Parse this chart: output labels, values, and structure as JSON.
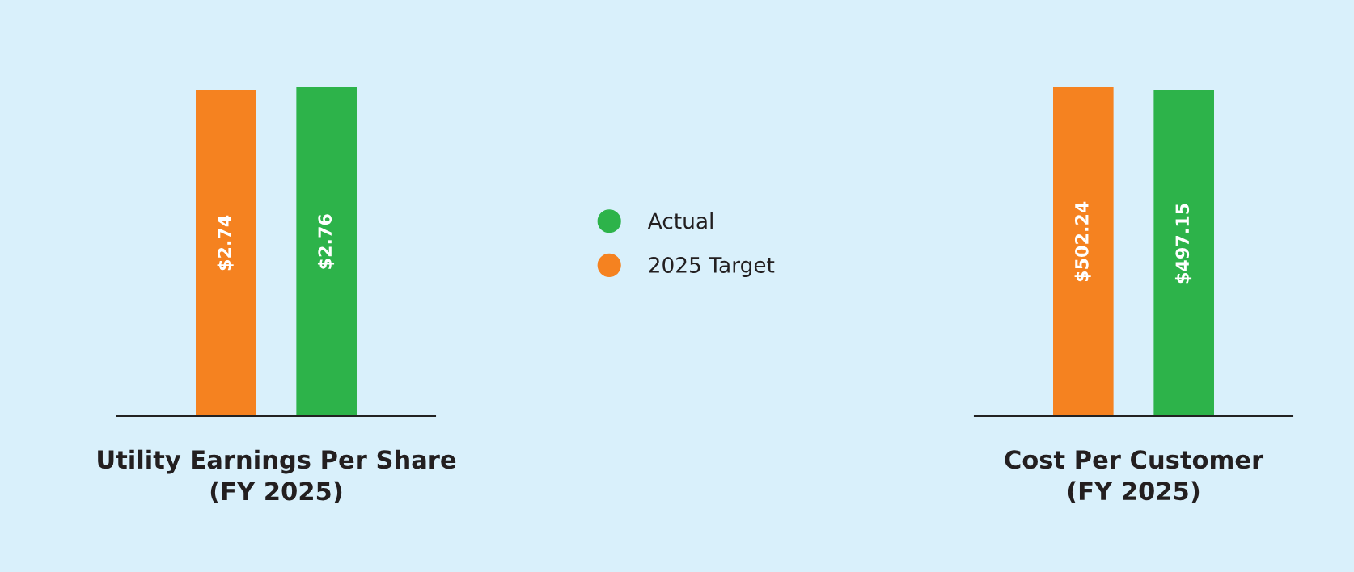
{
  "chart_data": [
    {
      "type": "bar",
      "xlabel": "Utility Earnings Per Share\n(FY 2025)",
      "categories": [
        null
      ],
      "legend": "right",
      "series": [
        {
          "name": "2025 Target",
          "color": "#f58220",
          "values": [
            2.74
          ],
          "value_labels": [
            "$2.74"
          ]
        },
        {
          "name": "Actual",
          "color": "#2db34a",
          "values": [
            2.76
          ],
          "value_labels": [
            "$2.76"
          ]
        }
      ]
    },
    {
      "type": "bar",
      "xlabel": "Cost Per Customer\n(FY 2025)",
      "categories": [
        null
      ],
      "legend": false,
      "series": [
        {
          "color": "#f58220",
          "values": [
            502.24
          ],
          "value_labels": [
            "$502.24"
          ]
        },
        {
          "color": "#2db34a",
          "values": [
            497.15
          ],
          "value_labels": [
            "$497.15"
          ]
        }
      ]
    }
  ]
}
